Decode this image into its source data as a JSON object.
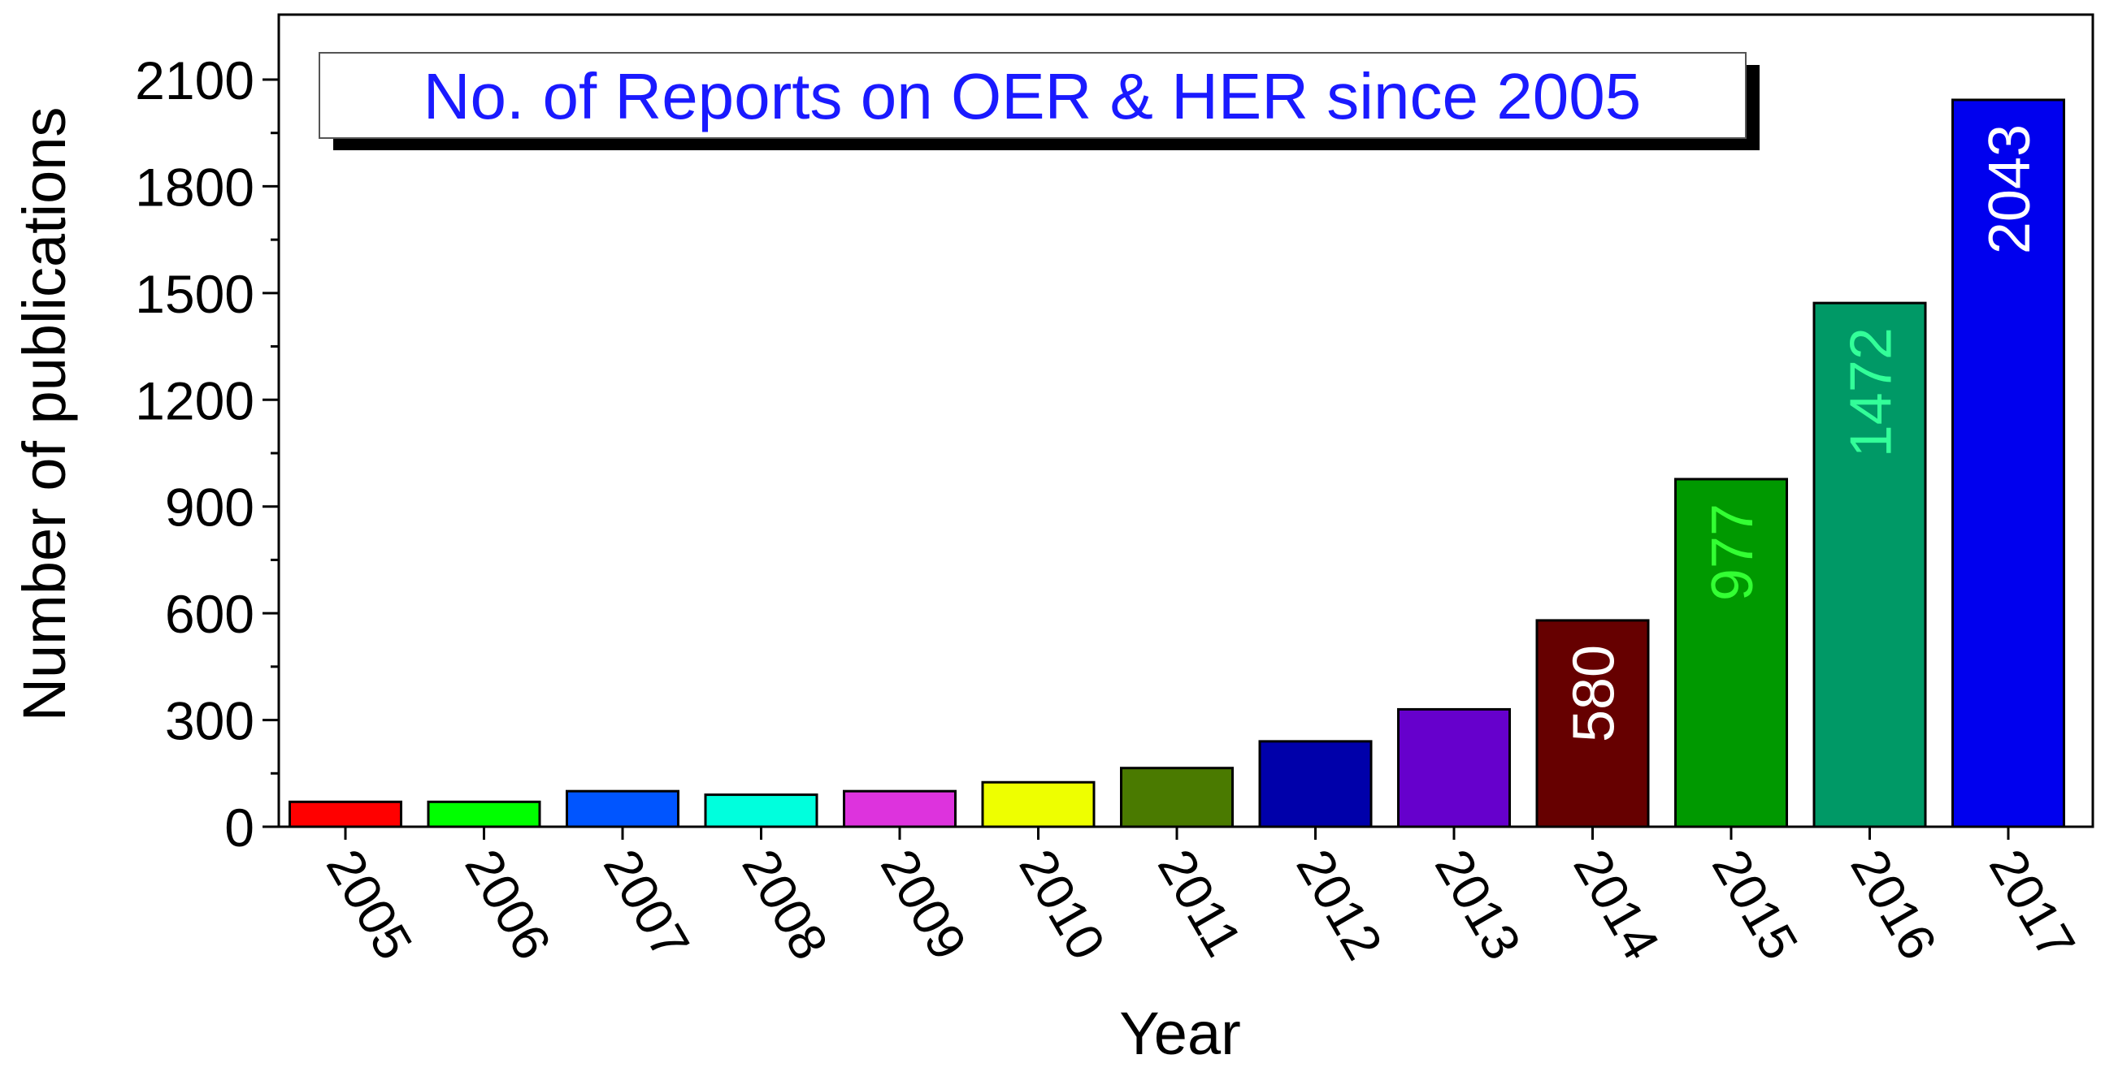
{
  "chart_data": {
    "type": "bar",
    "title": "No. of Reports on OER & HER since 2005",
    "xlabel": "Year",
    "ylabel": "Number of publications",
    "categories": [
      "2005",
      "2006",
      "2007",
      "2008",
      "2009",
      "2010",
      "2011",
      "2012",
      "2013",
      "2014",
      "2015",
      "2016",
      "2017"
    ],
    "values": [
      70,
      70,
      100,
      90,
      100,
      125,
      165,
      240,
      330,
      580,
      977,
      1472,
      2043
    ],
    "bar_colors": [
      "#ff0000",
      "#00ff00",
      "#0055ff",
      "#00ffdd",
      "#dd33dd",
      "#eeff00",
      "#4a7a00",
      "#0000aa",
      "#6600cc",
      "#660000",
      "#009900",
      "#009966",
      "#0000ee"
    ],
    "data_labels": [
      "",
      "",
      "",
      "",
      "",
      "",
      "",
      "",
      "",
      "580",
      "977",
      "1472",
      "2043"
    ],
    "data_label_colors": [
      "",
      "",
      "",
      "",
      "",
      "",
      "",
      "",
      "",
      "#ffffff",
      "#33ff33",
      "#33ff99",
      "#ffffff"
    ],
    "yticks": [
      0,
      300,
      600,
      900,
      1200,
      1500,
      1800,
      2100
    ],
    "ylim": [
      0,
      2100
    ],
    "grid": false,
    "legend": "none",
    "title_color": "#1a1aff",
    "axis_color": "#000000"
  }
}
